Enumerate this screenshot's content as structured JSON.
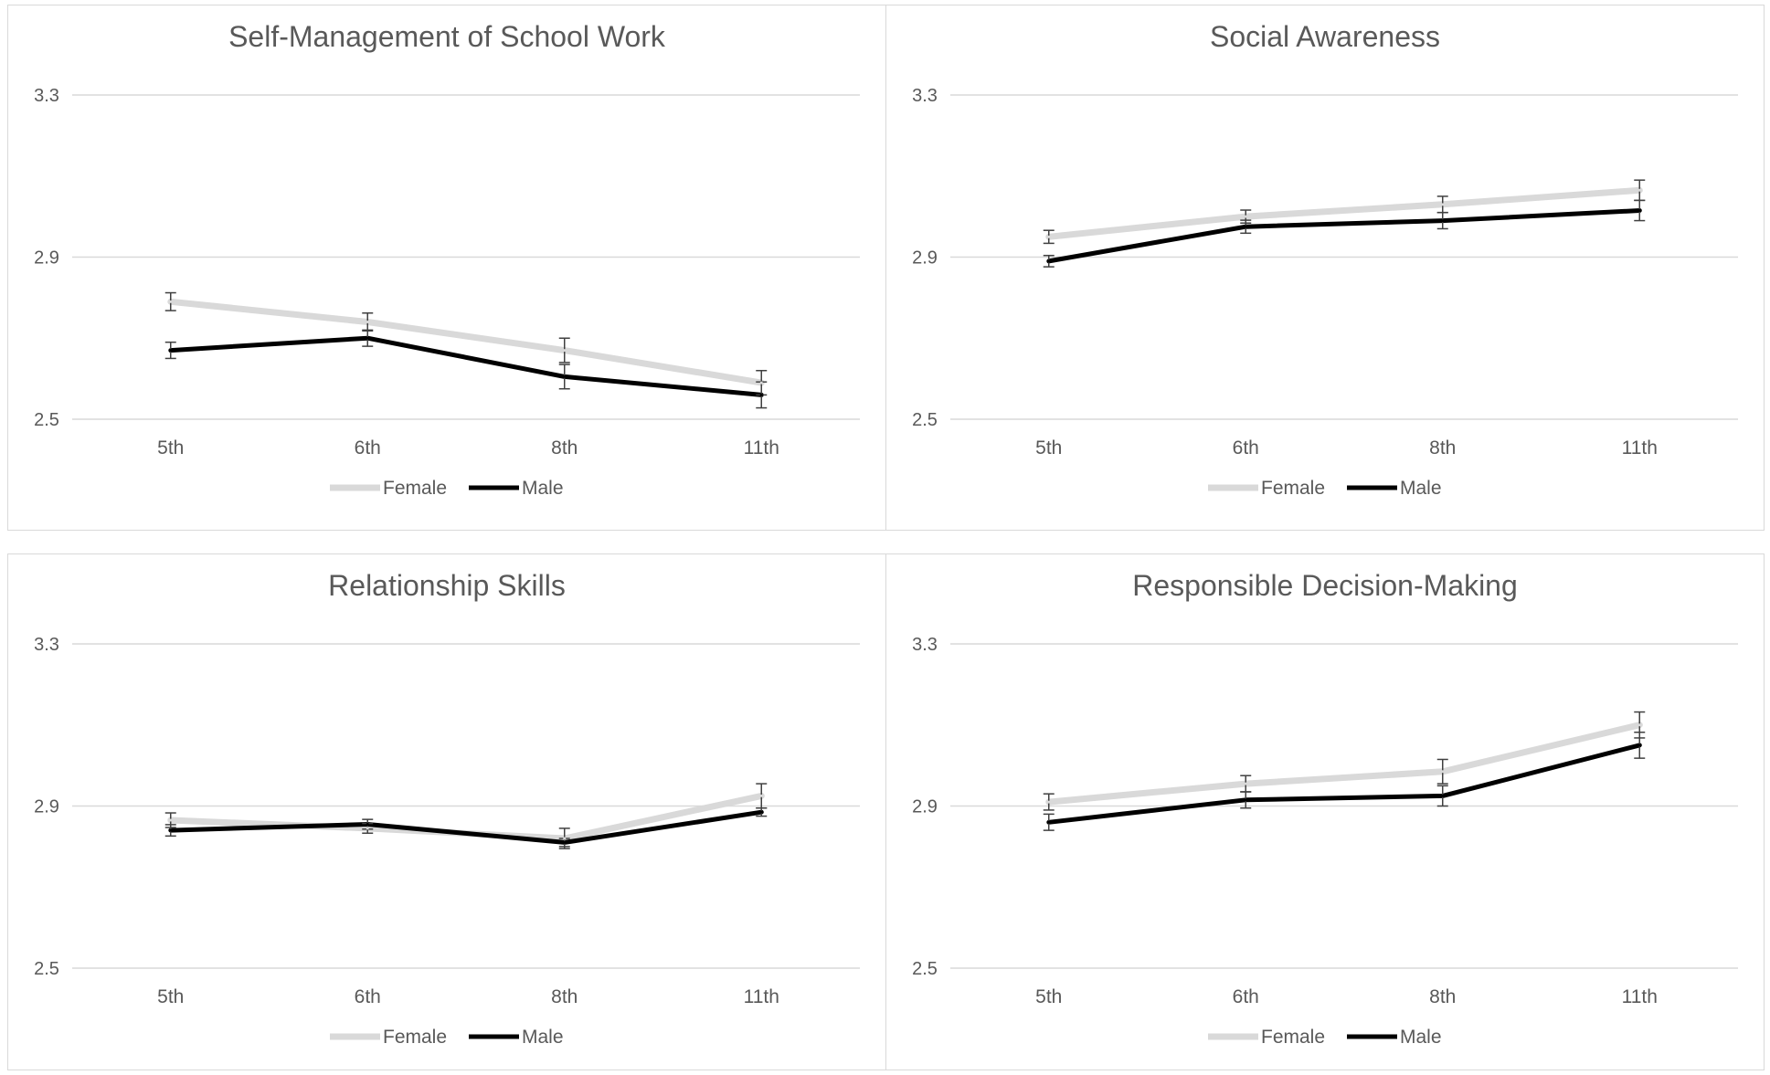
{
  "colors": {
    "female": "#d9d9d9",
    "male": "#000000",
    "grid": "#d9d9d9",
    "text": "#595959",
    "title": "#595959",
    "error_bar": "#404040"
  },
  "chart_data": [
    {
      "type": "line",
      "title": "Self-Management of School Work",
      "categories": [
        "5th",
        "6th",
        "8th",
        "11th"
      ],
      "ylim": [
        2.5,
        3.3
      ],
      "yticks": [
        "2.5",
        "2.9",
        "3.3"
      ],
      "grid": true,
      "legend_position": "bottom",
      "series": [
        {
          "name": "Female",
          "values": [
            2.79,
            2.74,
            2.67,
            2.59
          ],
          "error": [
            0.022,
            0.022,
            0.03,
            0.03
          ]
        },
        {
          "name": "Male",
          "values": [
            2.67,
            2.7,
            2.605,
            2.56
          ],
          "error": [
            0.02,
            0.02,
            0.03,
            0.032
          ]
        }
      ]
    },
    {
      "type": "line",
      "title": "Social Awareness",
      "categories": [
        "5th",
        "6th",
        "8th",
        "11th"
      ],
      "ylim": [
        2.5,
        3.3
      ],
      "yticks": [
        "2.5",
        "2.9",
        "3.3"
      ],
      "grid": true,
      "legend_position": "bottom",
      "series": [
        {
          "name": "Female",
          "values": [
            2.95,
            3.0,
            3.03,
            3.065
          ],
          "error": [
            0.016,
            0.016,
            0.02,
            0.025
          ]
        },
        {
          "name": "Male",
          "values": [
            2.89,
            2.975,
            2.99,
            3.015
          ],
          "error": [
            0.014,
            0.016,
            0.02,
            0.025
          ]
        }
      ]
    },
    {
      "type": "line",
      "title": "Relationship Skills",
      "categories": [
        "5th",
        "6th",
        "8th",
        "11th"
      ],
      "ylim": [
        2.5,
        3.3
      ],
      "yticks": [
        "2.5",
        "2.9",
        "3.3"
      ],
      "grid": true,
      "legend_position": "bottom",
      "series": [
        {
          "name": "Female",
          "values": [
            2.865,
            2.845,
            2.82,
            2.925
          ],
          "error": [
            0.018,
            0.012,
            0.025,
            0.03
          ]
        },
        {
          "name": "Male",
          "values": [
            2.84,
            2.855,
            2.81,
            2.885
          ],
          "error": [
            0.014,
            0.012,
            0.01,
            0.01
          ]
        }
      ]
    },
    {
      "type": "line",
      "title": "Responsible Decision-Making",
      "categories": [
        "5th",
        "6th",
        "8th",
        "11th"
      ],
      "ylim": [
        2.5,
        3.3
      ],
      "yticks": [
        "2.5",
        "2.9",
        "3.3"
      ],
      "grid": true,
      "legend_position": "bottom",
      "series": [
        {
          "name": "Female",
          "values": [
            2.91,
            2.955,
            2.985,
            3.1
          ],
          "error": [
            0.02,
            0.02,
            0.03,
            0.032
          ]
        },
        {
          "name": "Male",
          "values": [
            2.86,
            2.915,
            2.925,
            3.05
          ],
          "error": [
            0.02,
            0.02,
            0.025,
            0.032
          ]
        }
      ]
    }
  ]
}
